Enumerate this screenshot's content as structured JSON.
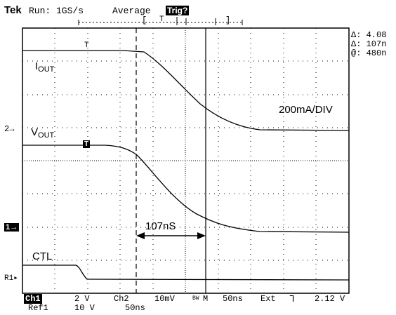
{
  "header": {
    "brand": "Tek",
    "run_status": "Run: 1GS/s",
    "acq_mode": "Average",
    "trigger_state": "Trig?"
  },
  "record_bar": {
    "left": "[",
    "trigger_marker": "T",
    "right": "]"
  },
  "readouts": {
    "delta_v": "Δ: 4.08",
    "delta_t": "Δ: 107n",
    "at": "@: 480n"
  },
  "waveform_labels": {
    "iout_main": "I",
    "iout_sub": "OUT",
    "vout_main": "V",
    "vout_sub": "OUT",
    "ctl": "CTL",
    "scale": "200mA/DIV",
    "measure": "107nS",
    "iout_trigger_marker": "T",
    "vout_trigger_marker": "T"
  },
  "left_markers": {
    "ch2": "2→",
    "ch1": "1→",
    "ref1": "R1▸"
  },
  "bottom": {
    "ch1_label": "Ch1",
    "ch1_scale": "2 V",
    "ch2_label": "Ch2",
    "ch2_scale": "10mV",
    "bw_symbol": "BW",
    "timebase_label": "M",
    "timebase": "50ns",
    "trigger_source": "Ext",
    "trigger_slope": "ᒣ",
    "trigger_level": "2.12 V",
    "ref1_label": "Ref1",
    "ref1_scale": "10 V",
    "ref1_time": "50ns"
  },
  "colors": {
    "trace": "#000000",
    "grid": "#000000",
    "background": "#ffffff"
  }
}
